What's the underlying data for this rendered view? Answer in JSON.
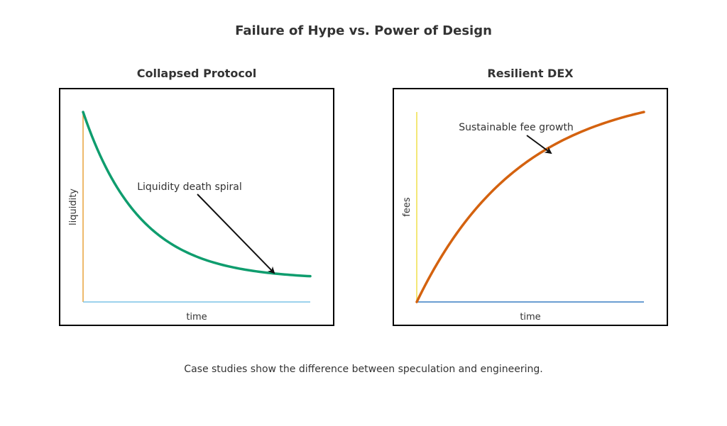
{
  "title": "Failure of Hype vs. Power of Design",
  "caption": "Case studies show the difference between speculation and engineering.",
  "colors": {
    "text": "#333333",
    "frame": "#000000",
    "collapse_curve": "#0f9d6e",
    "growth_curve": "#d4620f",
    "left_y_axis": "#e8a33c",
    "left_x_axis": "#7cc3e6",
    "right_y_axis": "#f0e04a",
    "right_x_axis": "#3a7fc4",
    "arrow": "#111111"
  },
  "panels": [
    {
      "title": "Collapsed Protocol",
      "xlabel": "time",
      "ylabel": "liquidity",
      "annotation": "Liquidity death spiral",
      "trend": "exponential decay"
    },
    {
      "title": "Resilient DEX",
      "xlabel": "time",
      "ylabel": "fees",
      "annotation": "Sustainable fee growth",
      "trend": "concave growth"
    }
  ]
}
